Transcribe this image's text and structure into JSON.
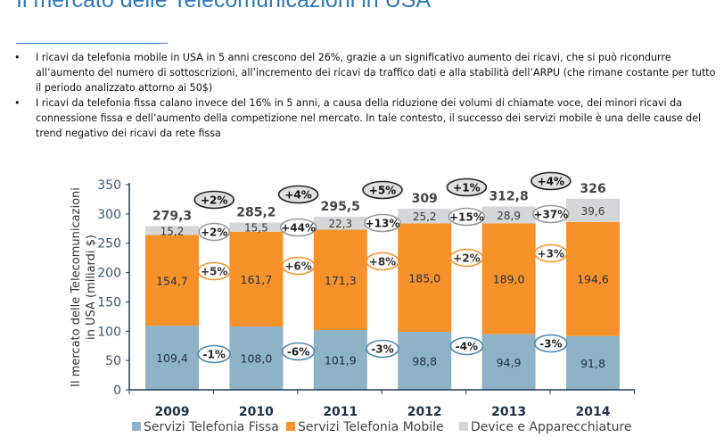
{
  "header": {
    "title": "Il mercato delle Telecomunicazioni in USA",
    "bullets": [
      "I ricavi da telefonia mobile in USA in 5 anni crescono del 26%, grazie a un significativo aumento dei ricavi, che si può ricondurre all’aumento del numero di sottoscrizioni, all’incremento dei ricavi da traffico dati e alla stabilità dell’ARPU (che rimane costante per tutto il periodo analizzato attorno ai 50$)",
      "I ricavi da telefonia fissa calano invece del 16% in 5 anni, a causa della riduzione dei volumi di chiamate voce, dei minori ricavi da connessione fissa e dell’aumento della competizione nel mercato. In tale contesto, il successo dei servizi mobile è una delle cause del trend negativo dei ricavi da rete fissa"
    ]
  },
  "chart_data": {
    "type": "bar",
    "stacked": true,
    "categories": [
      "2009",
      "2010",
      "2011",
      "2012",
      "2013",
      "2014"
    ],
    "series": [
      {
        "name": "Servizi Telefonia Fissa",
        "values": [
          109.4,
          108.0,
          101.9,
          98.8,
          94.9,
          91.8
        ],
        "labels": [
          "109,4",
          "108,0",
          "101,9",
          "98,8",
          "94,9",
          "91,8"
        ],
        "color": "#8fb3c6",
        "label_color": "#1f2f44"
      },
      {
        "name": "Servizi Telefonia Mobile",
        "values": [
          154.7,
          161.7,
          171.3,
          185.0,
          189.0,
          194.6
        ],
        "labels": [
          "154,7",
          "161,7",
          "171,3",
          "185,0",
          "189,0",
          "194,6"
        ],
        "color": "#f7922a",
        "label_color": "#1f2f44"
      },
      {
        "name": "Device e Apparecchiature",
        "values": [
          15.2,
          15.5,
          22.3,
          25.2,
          28.9,
          39.6
        ],
        "labels": [
          "15,2",
          "15,5",
          "22,3",
          "25,2",
          "28,9",
          "39,6"
        ],
        "color": "#d5d6d7",
        "label_color": "#3a3a3a"
      }
    ],
    "totals": [
      279.3,
      285.2,
      295.5,
      309,
      312.8,
      326
    ],
    "total_labels": [
      "279,3",
      "285,2",
      "295,5",
      "309",
      "312,8",
      "326"
    ],
    "growth": {
      "total": [
        "+2%",
        "+4%",
        "+5%",
        "+1%",
        "+4%"
      ],
      "device": [
        "+2%",
        "+44%",
        "+13%",
        "+15%",
        "+37%"
      ],
      "mobile": [
        "+5%",
        "+6%",
        "+8%",
        "+2%",
        "+3%"
      ],
      "fissa": [
        "-1%",
        "-6%",
        "-3%",
        "-4%",
        "-3%"
      ]
    },
    "ylabel": "Il mercato delle Telecomunicazioni in USA (miliardi $)",
    "ylim": [
      0,
      350
    ],
    "yticks": [
      0,
      50,
      100,
      150,
      200,
      250,
      300,
      350
    ],
    "grid": false,
    "legend": "bottom",
    "colors": {
      "axis": "#1f3b57",
      "tick": "#3a5575",
      "ellipse_orange": "#f7922a",
      "ellipse_blue": "#4a86b0",
      "ellipse_dark": "#222222",
      "ellipse_dark_fill": "#e0e0e0"
    }
  }
}
